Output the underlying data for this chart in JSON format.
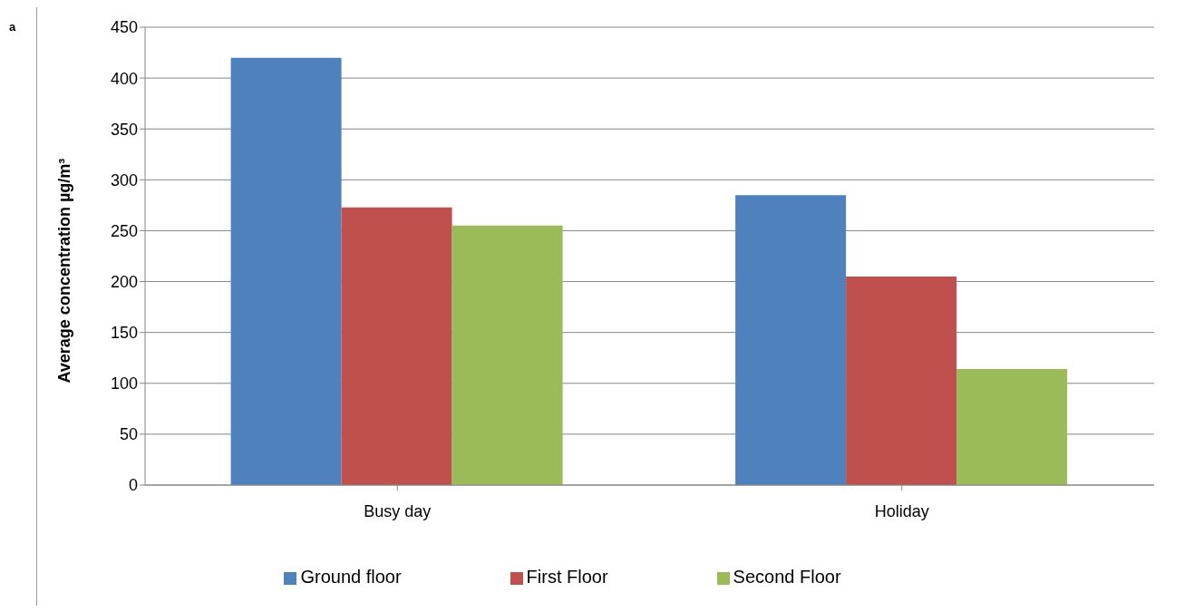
{
  "chart_data": {
    "type": "bar",
    "ylabel": "Average concentration µg/m³",
    "annotations": [
      "a"
    ],
    "categories": [
      "Busy day",
      "Holiday"
    ],
    "series": [
      {
        "name": "Ground floor",
        "color": "#4f81bd",
        "values": [
          420,
          285
        ]
      },
      {
        "name": "First Floor",
        "color": "#c0504d",
        "values": [
          273,
          205
        ]
      },
      {
        "name": "Second Floor",
        "color": "#9bbb59",
        "values": [
          255,
          114
        ]
      }
    ],
    "ylim": [
      0,
      450
    ],
    "yticks": [
      0,
      50,
      100,
      150,
      200,
      250,
      300,
      350,
      400,
      450
    ],
    "grid": "y",
    "legend": "bottom"
  }
}
